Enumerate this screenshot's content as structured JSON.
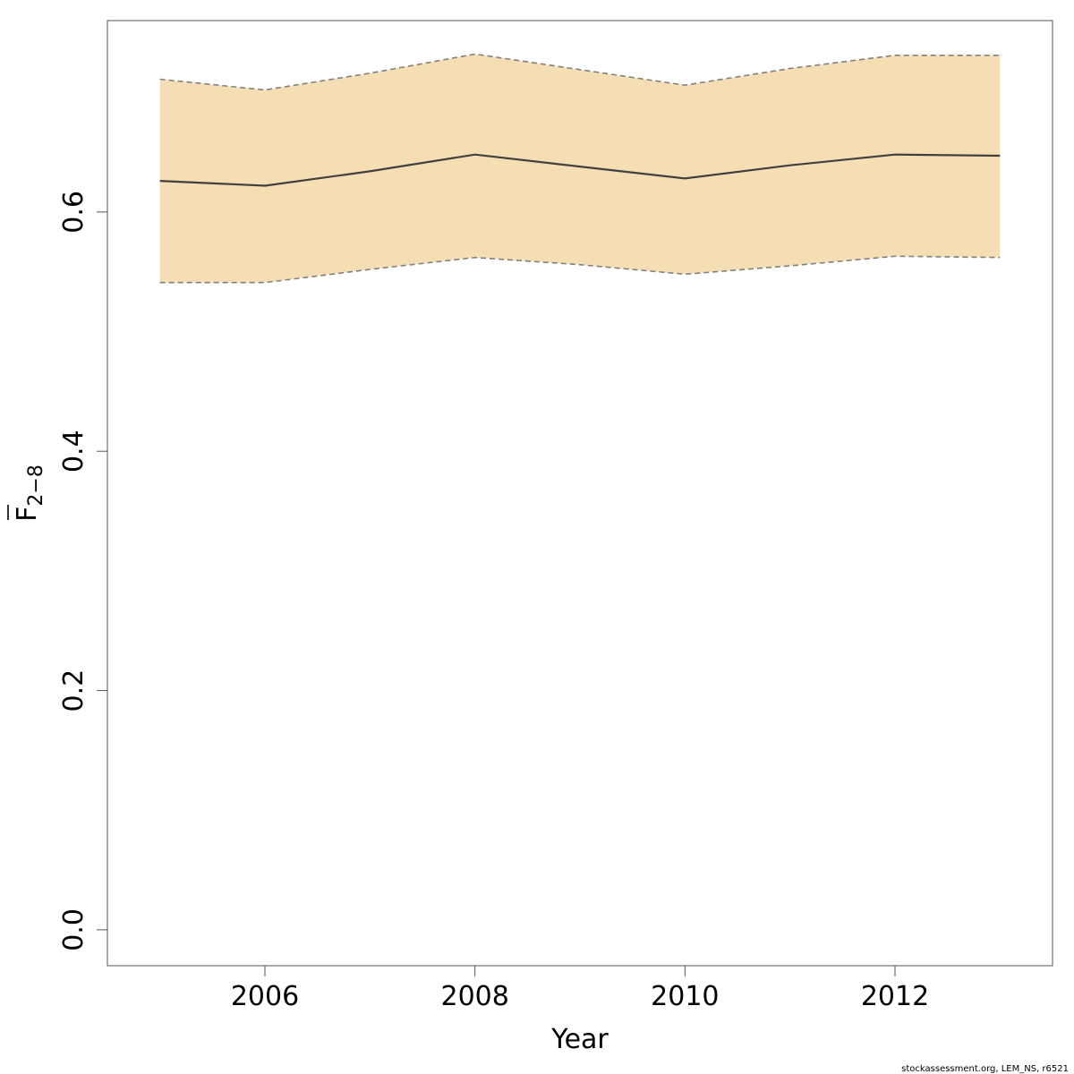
{
  "chart_data": {
    "type": "line",
    "x": [
      2005,
      2006,
      2007,
      2008,
      2009,
      2010,
      2011,
      2012,
      2013
    ],
    "series": [
      {
        "role": "estimate",
        "values": [
          0.626,
          0.622,
          0.634,
          0.648,
          0.638,
          0.628,
          0.639,
          0.648,
          0.647
        ]
      },
      {
        "role": "upper",
        "values": [
          0.711,
          0.702,
          0.716,
          0.732,
          0.719,
          0.706,
          0.72,
          0.731,
          0.731
        ]
      },
      {
        "role": "lower",
        "values": [
          0.541,
          0.541,
          0.552,
          0.562,
          0.556,
          0.548,
          0.555,
          0.563,
          0.562
        ]
      }
    ],
    "xlabel": "Year",
    "ylabel_main": "F",
    "ylabel_sub": "2−8",
    "xticks": [
      "2006",
      "2008",
      "2010",
      "2012"
    ],
    "yticks": [
      "0.0",
      "0.2",
      "0.4",
      "0.6"
    ],
    "xlim": [
      2004.5,
      2013.5
    ],
    "ylim": [
      -0.03,
      0.76
    ],
    "band_color": "#F5DEB3",
    "line_color": "#404040",
    "bound_color": "#808080",
    "grid": false,
    "legend": "none"
  },
  "footer": "stockassessment.org, LEM_NS, r6521"
}
